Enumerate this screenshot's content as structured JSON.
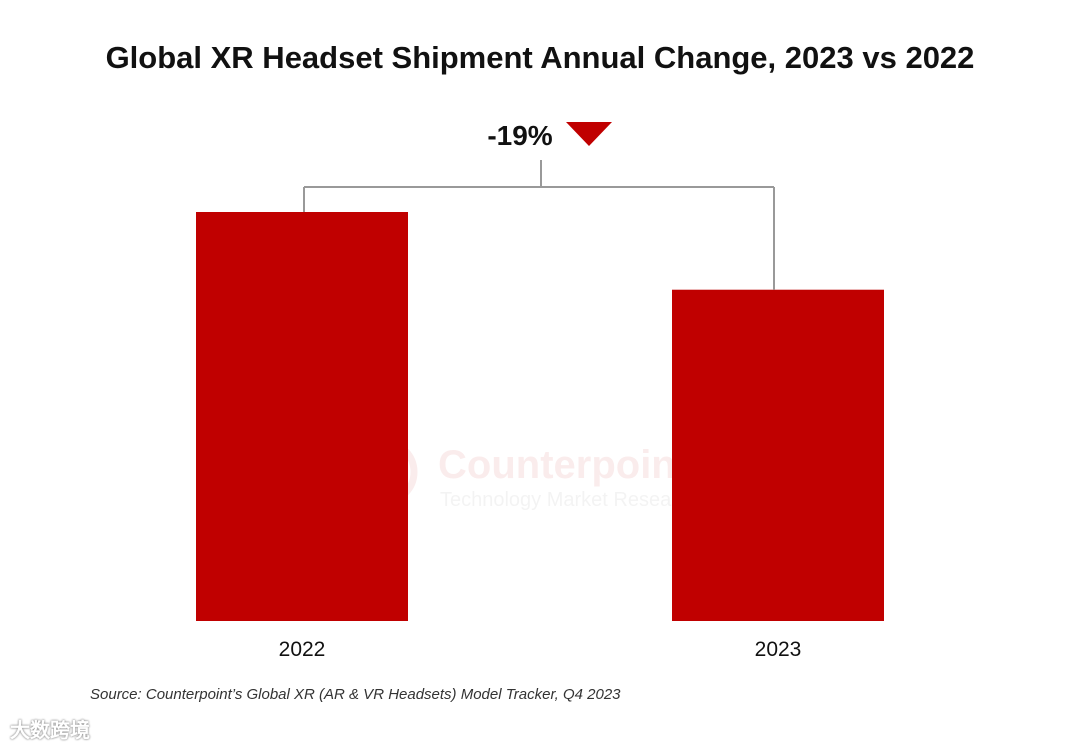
{
  "chart_data": {
    "type": "bar",
    "title": "Global XR Headset Shipment Annual Change, 2023 vs 2022",
    "categories": [
      "2022",
      "2023"
    ],
    "values": [
      100,
      81
    ],
    "value_unit": "index (2022 = 100)",
    "ylim": [
      0,
      100
    ],
    "xlabel": "",
    "ylabel": "",
    "grid": false,
    "legend": "none",
    "bar_color": "#c00000",
    "annotation": {
      "text": "-19%",
      "from": "2022",
      "to": "2023",
      "marker": "down-triangle",
      "marker_color": "#c00000",
      "connector_color": "#999999"
    },
    "source": "Source: Counterpoint’s Global XR (AR & VR Headsets) Model Tracker, Q4 2023",
    "watermark": {
      "brand": "Counterpoint",
      "tagline": "Technology Market Research"
    },
    "corner_logo": "大数跨境"
  }
}
